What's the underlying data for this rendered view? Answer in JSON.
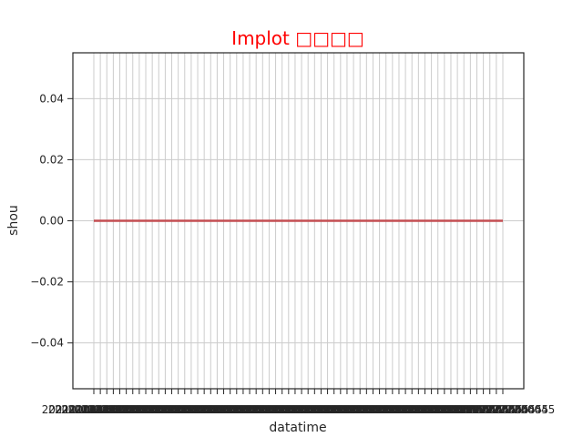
{
  "chart_data": {
    "type": "line",
    "title": "Implot □□□□",
    "title_color": "#ff0000",
    "xlabel": "datatime",
    "ylabel": "shou",
    "ylim": [
      -0.055,
      0.055
    ],
    "y_ticks": [
      "0.04",
      "0.02",
      "0.00",
      "−0.02",
      "−0.04"
    ],
    "y_tick_values": [
      0.04,
      0.02,
      0.0,
      -0.02,
      -0.04
    ],
    "x_tick_count": 64,
    "x_tick_label_sample": "202101011230045",
    "grid": true,
    "grid_color": "#cccccc",
    "series": [
      {
        "values": [
          0,
          0
        ],
        "color": "#c44e52"
      }
    ]
  }
}
